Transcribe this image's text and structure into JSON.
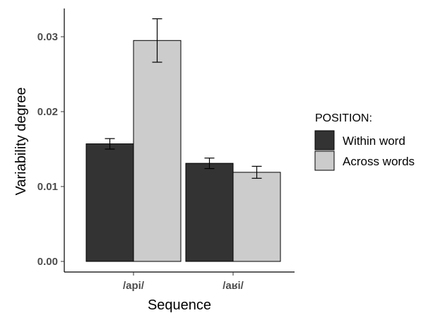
{
  "chart_data": {
    "type": "bar",
    "title": "",
    "xlabel": "Sequence",
    "ylabel": "Variability degree",
    "categories": [
      "/api/",
      "/aʁi/"
    ],
    "ylim": [
      0,
      0.034
    ],
    "yticks": [
      0.0,
      0.01,
      0.02,
      0.03
    ],
    "ytick_labels": [
      "0.00",
      "0.01",
      "0.02",
      "0.03"
    ],
    "grid": false,
    "legend": {
      "title": "POSITION:",
      "placement": "right"
    },
    "series": [
      {
        "name": "Within word",
        "color": "#333333",
        "values": [
          0.0157,
          0.0131
        ],
        "errors": [
          0.0007,
          0.0007
        ]
      },
      {
        "name": "Across words",
        "color": "#cccccc",
        "values": [
          0.0295,
          0.0119
        ],
        "errors": [
          0.0029,
          0.0008
        ]
      }
    ]
  }
}
